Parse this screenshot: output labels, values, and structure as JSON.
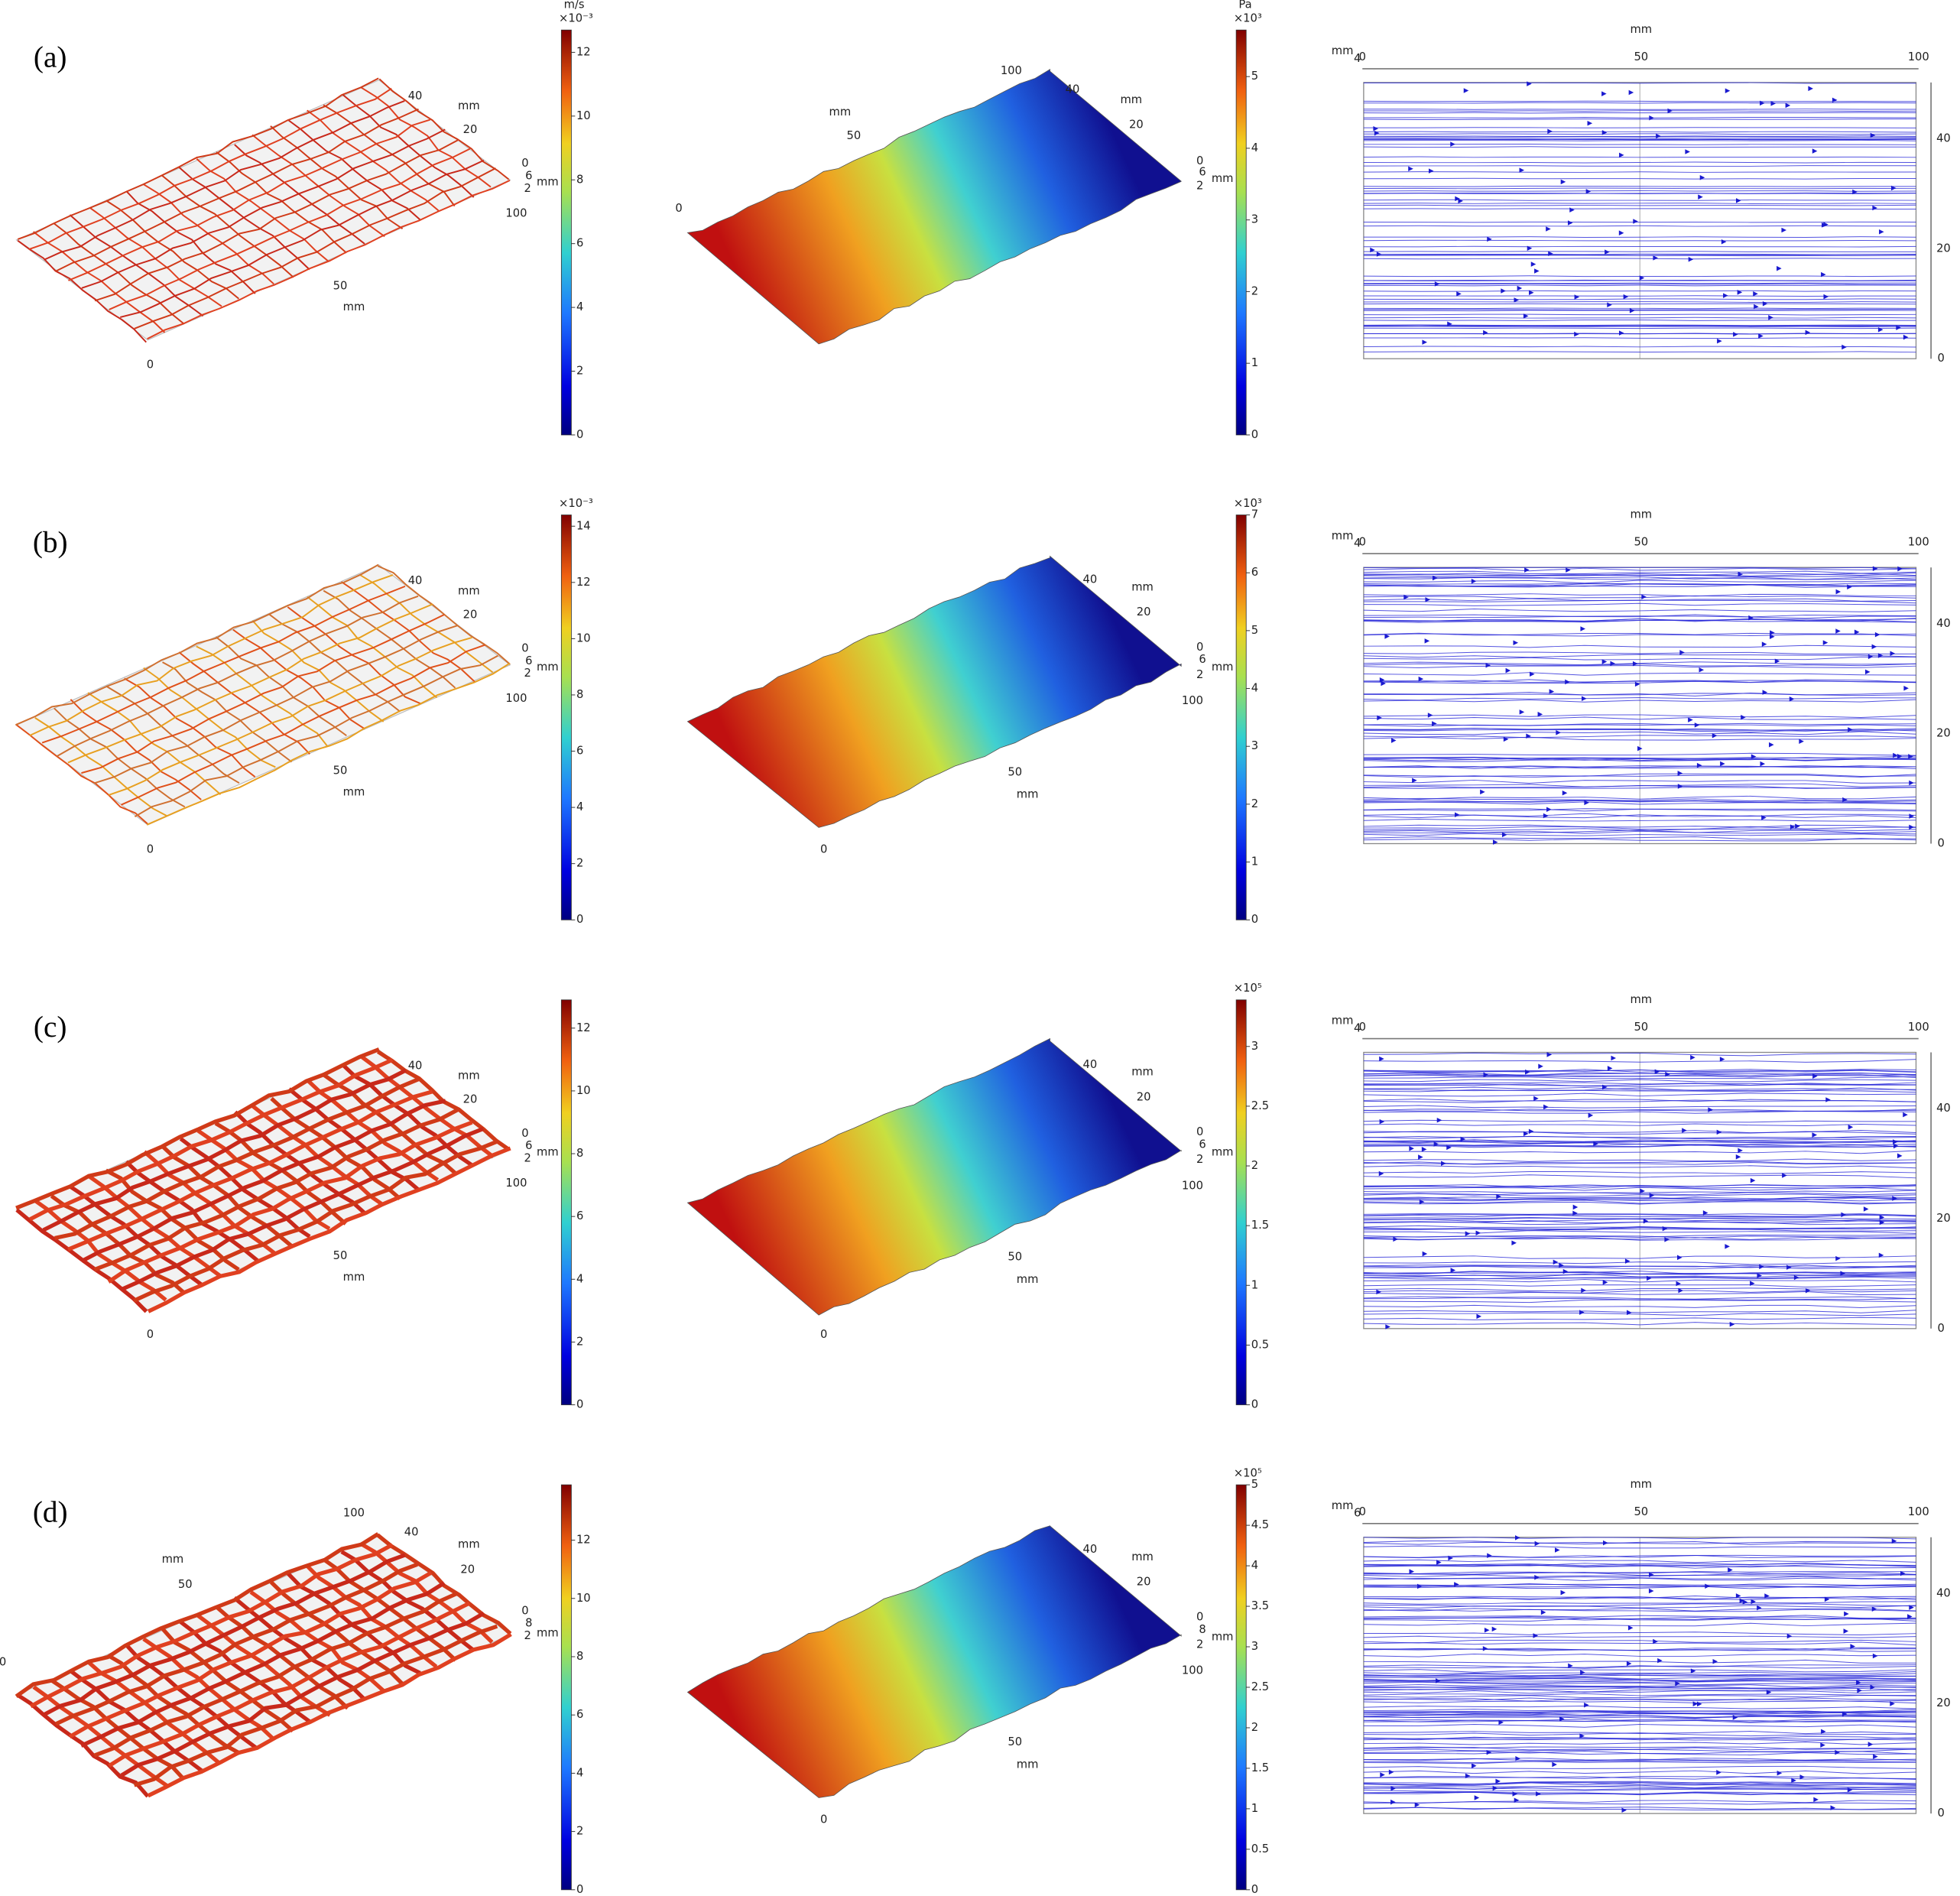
{
  "rows": [
    {
      "label": "(a)",
      "velocity": {
        "unit": "m/s",
        "multiplier": "×10⁻³",
        "range": [
          0,
          12.7
        ],
        "ticks": [
          0,
          2,
          4,
          6,
          8,
          10,
          12
        ],
        "axis_labels": [
          "40",
          "mm",
          "20",
          "0",
          "6",
          "mm",
          "2",
          "100",
          "50",
          "mm",
          "0"
        ]
      },
      "pressure": {
        "unit": "Pa",
        "multiplier": "×10³",
        "range": [
          0,
          5.65
        ],
        "ticks": [
          0,
          1,
          2,
          3,
          4,
          5
        ],
        "axis_labels": [
          "100",
          "40",
          "mm",
          "mm",
          "50",
          "20",
          "0",
          "6",
          "mm",
          "2",
          "0"
        ]
      },
      "streamlines": {
        "axis_labels": [
          "mm",
          "0",
          "50",
          "100",
          "mm",
          "4",
          "40",
          "20",
          "0"
        ]
      }
    },
    {
      "label": "(b)",
      "velocity": {
        "multiplier": "×10⁻³",
        "range": [
          0,
          14.4
        ],
        "ticks": [
          0,
          2,
          4,
          6,
          8,
          10,
          12,
          14
        ],
        "axis_labels": [
          "40",
          "mm",
          "20",
          "0",
          "6",
          "mm",
          "2",
          "100",
          "50",
          "mm",
          "0"
        ]
      },
      "pressure": {
        "multiplier": "×10³",
        "range": [
          0,
          7
        ],
        "ticks": [
          0,
          1,
          2,
          3,
          4,
          5,
          6,
          7
        ],
        "axis_labels": [
          "40",
          "mm",
          "20",
          "0",
          "6",
          "mm",
          "2",
          "100",
          "50",
          "mm",
          "0"
        ]
      },
      "streamlines": {
        "axis_labels": [
          "mm",
          "0",
          "50",
          "100",
          "mm",
          "4",
          "40",
          "20",
          "0"
        ]
      }
    },
    {
      "label": "(c)",
      "velocity": {
        "range": [
          0,
          12.9
        ],
        "ticks": [
          0,
          2,
          4,
          6,
          8,
          10,
          12
        ],
        "axis_labels": [
          "40",
          "mm",
          "20",
          "0",
          "6",
          "mm",
          "2",
          "100",
          "50",
          "mm",
          "0"
        ]
      },
      "pressure": {
        "multiplier": "×10⁵",
        "range": [
          0,
          3.39
        ],
        "ticks": [
          0,
          0.5,
          1,
          1.5,
          2,
          2.5,
          3
        ],
        "axis_labels": [
          "40",
          "mm",
          "20",
          "0",
          "6",
          "mm",
          "2",
          "100",
          "50",
          "mm",
          "0"
        ]
      },
      "streamlines": {
        "axis_labels": [
          "mm",
          "0",
          "50",
          "100",
          "mm",
          "4",
          "40",
          "20",
          "0"
        ]
      }
    },
    {
      "label": "(d)",
      "velocity": {
        "range": [
          0,
          13.9
        ],
        "ticks": [
          0,
          2,
          4,
          6,
          8,
          10,
          12
        ],
        "axis_labels": [
          "100",
          "40",
          "mm",
          "mm",
          "50",
          "20",
          "0",
          "8",
          "mm",
          "2",
          "0"
        ]
      },
      "pressure": {
        "multiplier": "×10⁵",
        "range": [
          0,
          5
        ],
        "ticks": [
          0,
          0.5,
          1,
          1.5,
          2,
          2.5,
          3,
          3.5,
          4,
          4.5,
          5
        ],
        "axis_labels": [
          "40",
          "mm",
          "20",
          "0",
          "8",
          "mm",
          "2",
          "100",
          "50",
          "mm",
          "0"
        ]
      },
      "streamlines": {
        "axis_labels": [
          "mm",
          "0",
          "50",
          "100",
          "mm",
          "6",
          "40",
          "20",
          "0"
        ]
      }
    }
  ]
}
